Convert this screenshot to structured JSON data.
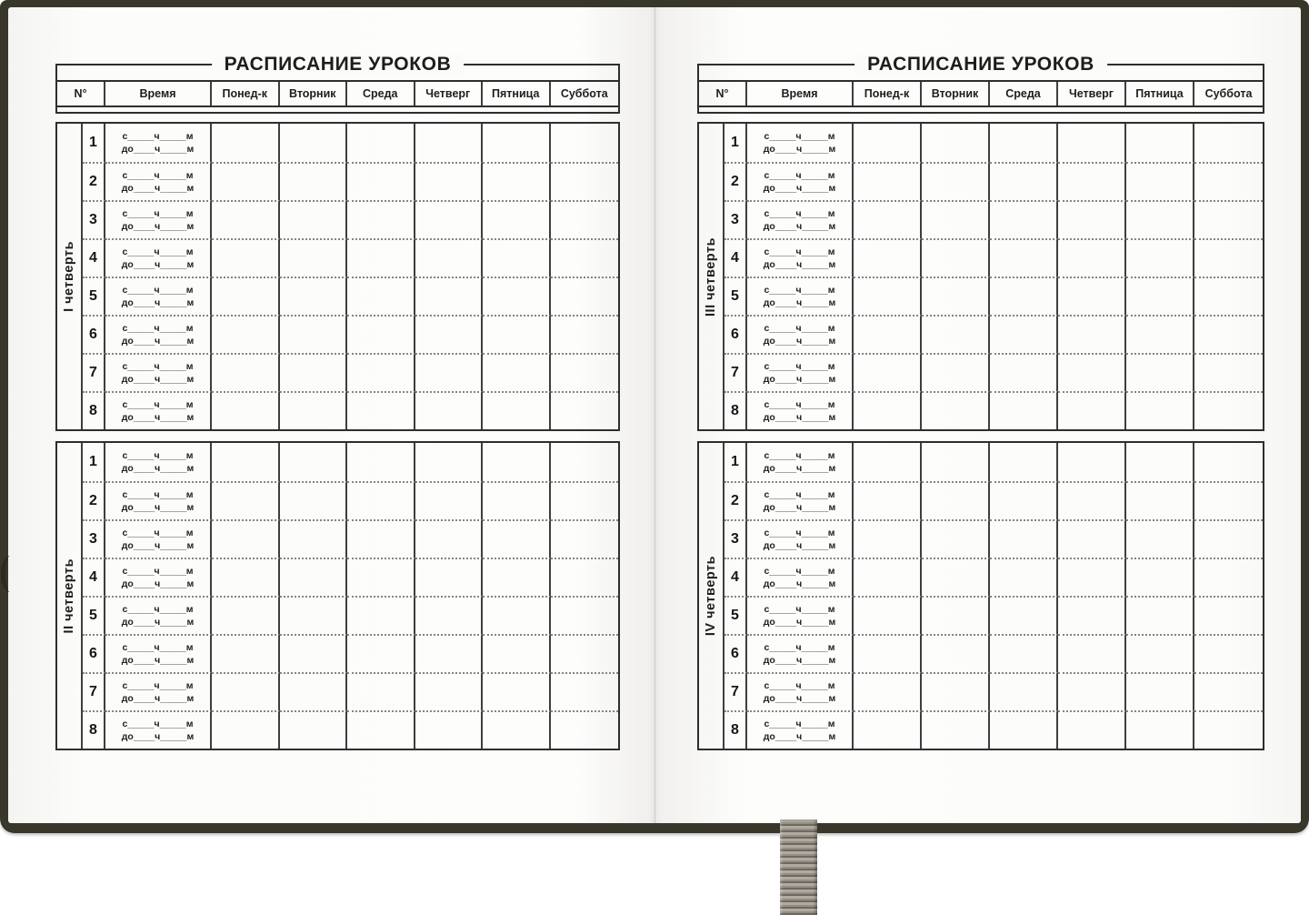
{
  "document": {
    "title": "РАСПИСАНИЕ УРОКОВ",
    "table_header": {
      "num": "N°",
      "time": "Время",
      "days": [
        "Понед-к",
        "Вторник",
        "Среда",
        "Четверг",
        "Пятница",
        "Суббота"
      ]
    },
    "time_row": {
      "from": "с_____ч_____м",
      "to": "до____ч_____м"
    },
    "lesson_numbers": [
      "1",
      "2",
      "3",
      "4",
      "5",
      "6",
      "7",
      "8"
    ],
    "quarters": [
      {
        "label": "I четверть"
      },
      {
        "label": "II четверть"
      },
      {
        "label": "III четверть"
      },
      {
        "label": "IV четверть"
      }
    ],
    "pages": [
      {
        "quarters": [
          0,
          1
        ]
      },
      {
        "quarters": [
          2,
          3
        ]
      }
    ]
  },
  "colors": {
    "cover": "#393729",
    "page": "#fbfbf9",
    "grid_line": "#2e2e2e",
    "dotted_line": "#858585",
    "ribbon_light": "#b0aaa1",
    "ribbon_dark": "#6e6860"
  }
}
